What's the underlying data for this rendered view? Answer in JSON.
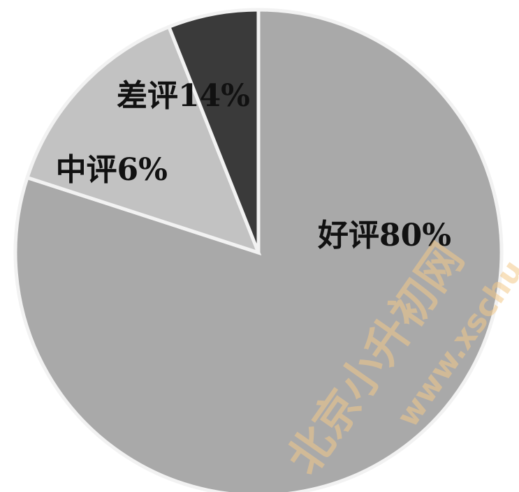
{
  "chart_data": {
    "type": "pie",
    "title": "",
    "slices": [
      {
        "label": "好评",
        "value": 80,
        "text": "好评80%",
        "color": "#a9a9a9"
      },
      {
        "label": "差评",
        "value": 14,
        "text": "差评14%",
        "color": "#c2c2c2"
      },
      {
        "label": "中评",
        "value": 6,
        "text": "中评6%",
        "color": "#3a3a3a"
      }
    ],
    "legend": "none",
    "data_labels": "inside"
  },
  "watermark": {
    "text": "北京小升初网",
    "url": "www.xschu.com"
  }
}
